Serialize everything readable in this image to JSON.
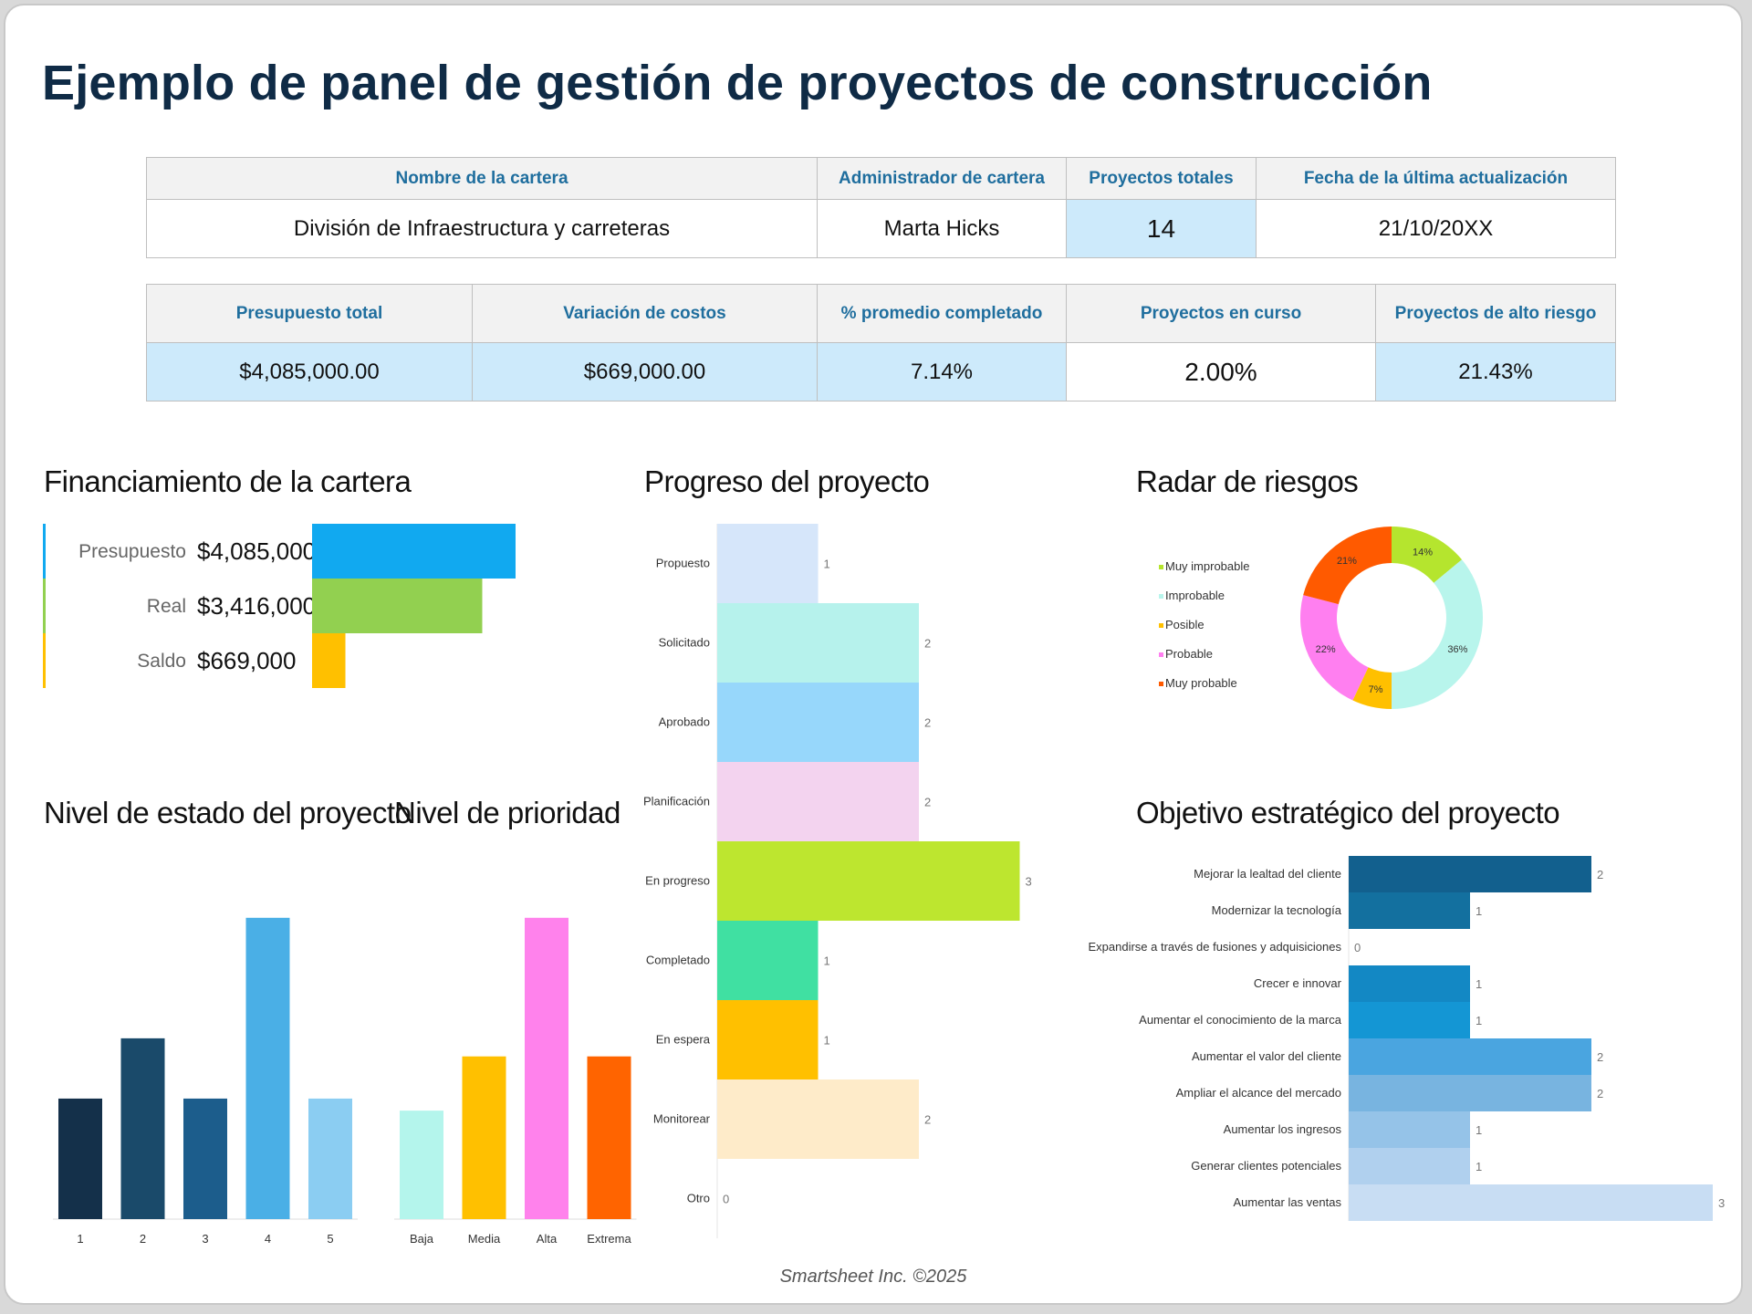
{
  "title": "Ejemplo de panel de gestión de proyectos de construcción",
  "info_table": {
    "headers": [
      "Nombre de la cartera",
      "Administrador de cartera",
      "Proyectos totales",
      "Fecha de la última actualización"
    ],
    "values": [
      "División de Infraestructura y carreteras",
      "Marta Hicks",
      "14",
      "21/10/20XX"
    ]
  },
  "kpi_table": {
    "headers": [
      "Presupuesto total",
      "Variación de costos",
      "% promedio completado",
      "Proyectos en curso",
      "Proyectos de alto riesgo"
    ],
    "values": [
      "$4,085,000.00",
      "$669,000.00",
      "7.14%",
      "2.00%",
      "21.43%"
    ]
  },
  "footer": "Smartsheet Inc. ©2025",
  "chart_data": [
    {
      "id": "funding",
      "type": "bar",
      "orientation": "horizontal",
      "title": "Financiamiento de la cartera",
      "categories": [
        "Presupuesto",
        "Real",
        "Saldo"
      ],
      "values": [
        4085000,
        3416000,
        669000
      ],
      "value_labels": [
        "$4,085,000",
        "$3,416,000",
        "$669,000"
      ],
      "colors": [
        "#11a9f0",
        "#92d050",
        "#ffc000"
      ]
    },
    {
      "id": "progress",
      "type": "bar",
      "orientation": "horizontal",
      "title": "Progreso del proyecto",
      "categories": [
        "Propuesto",
        "Solicitado",
        "Aprobado",
        "Planificación",
        "En progreso",
        "Completado",
        "En espera",
        "Monitorear",
        "Otro"
      ],
      "values": [
        1,
        2,
        2,
        2,
        3,
        1,
        1,
        2,
        0
      ],
      "colors": [
        "#d6e6fa",
        "#b6f2ec",
        "#97d7fb",
        "#f3d3ef",
        "#bde62f",
        "#40e0a2",
        "#ffc000",
        "#feebc9",
        "#cccccc"
      ]
    },
    {
      "id": "risk",
      "type": "pie",
      "donut": true,
      "title": "Radar de riesgos",
      "categories": [
        "Muy improbable",
        "Improbable",
        "Posible",
        "Probable",
        "Muy probable"
      ],
      "values": [
        14,
        36,
        7,
        22,
        21
      ],
      "labels": [
        "14%",
        "36%",
        "7%",
        "22%",
        "21%"
      ],
      "colors": [
        "#b5e52e",
        "#b8f5ec",
        "#ffc000",
        "#ff7ff0",
        "#ff5a00"
      ],
      "legend": "left"
    },
    {
      "id": "status",
      "type": "bar",
      "orientation": "vertical",
      "title": "Nivel de estado del proyecto",
      "categories": [
        "1",
        "2",
        "3",
        "4",
        "5"
      ],
      "values": [
        2,
        3,
        2,
        5,
        2
      ],
      "colors": [
        "#14304a",
        "#1a4a6a",
        "#1c5d8c",
        "#4aafe6",
        "#8bcdf2"
      ]
    },
    {
      "id": "priority",
      "type": "bar",
      "orientation": "vertical",
      "title": "Nivel de prioridad",
      "categories": [
        "Baja",
        "Media",
        "Alta",
        "Extrema"
      ],
      "values": [
        1.8,
        2.7,
        5.0,
        2.7
      ],
      "colors": [
        "#b4f5ec",
        "#ffc000",
        "#ff82ec",
        "#ff6400"
      ]
    },
    {
      "id": "objective",
      "type": "bar",
      "orientation": "horizontal",
      "title": "Objetivo estratégico del proyecto",
      "categories": [
        "Mejorar la lealtad del cliente",
        "Modernizar la tecnología",
        "Expandirse a través de fusiones y adquisiciones",
        "Crecer e innovar",
        "Aumentar el conocimiento de la marca",
        "Aumentar el valor del cliente",
        "Ampliar el alcance del mercado",
        "Aumentar los ingresos",
        "Generar clientes potenciales",
        "Aumentar las ventas"
      ],
      "values": [
        2,
        1,
        0,
        1,
        1,
        2,
        2,
        1,
        1,
        3
      ],
      "colors": [
        "#12608e",
        "#13709f",
        "#1580b2",
        "#1388c4",
        "#1496d4",
        "#4aa5e0",
        "#78b4e0",
        "#95c3e8",
        "#b0d0ee",
        "#c8ddf3"
      ]
    }
  ]
}
